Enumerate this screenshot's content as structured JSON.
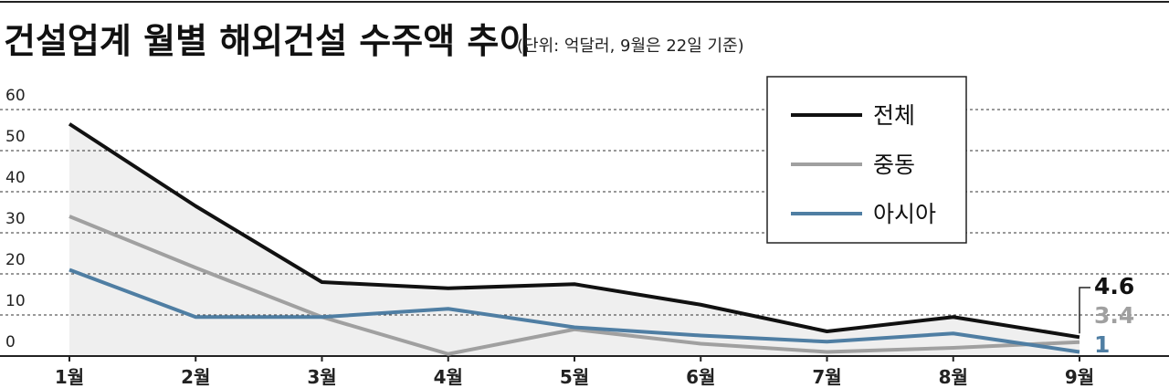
{
  "chart_data": {
    "type": "line",
    "title": "건설업계 월별 해외건설 수주액 추이",
    "subtitle": "(단위: 억달러, 9월은 22일 기준)",
    "categories": [
      "1월",
      "2월",
      "3월",
      "4월",
      "5월",
      "6월",
      "7월",
      "8월",
      "9월"
    ],
    "series": [
      {
        "name": "전체",
        "color": "#111111",
        "values": [
          56.5,
          36.5,
          18,
          16.5,
          17.5,
          12.5,
          6,
          9.5,
          4.6
        ]
      },
      {
        "name": "중동",
        "color": "#a0a0a0",
        "values": [
          34,
          21.5,
          9.5,
          0.5,
          6.5,
          3,
          1,
          2,
          3.4
        ]
      },
      {
        "name": "아시아",
        "color": "#4f7ea3",
        "values": [
          21,
          9.5,
          9.5,
          11.5,
          7,
          5,
          3.5,
          5.5,
          1
        ]
      }
    ],
    "ylim": [
      0,
      60
    ],
    "yticks": [
      0,
      10,
      20,
      30,
      40,
      50,
      60
    ],
    "grid": true,
    "legend": "upper right",
    "area_fill": "#efefef"
  }
}
